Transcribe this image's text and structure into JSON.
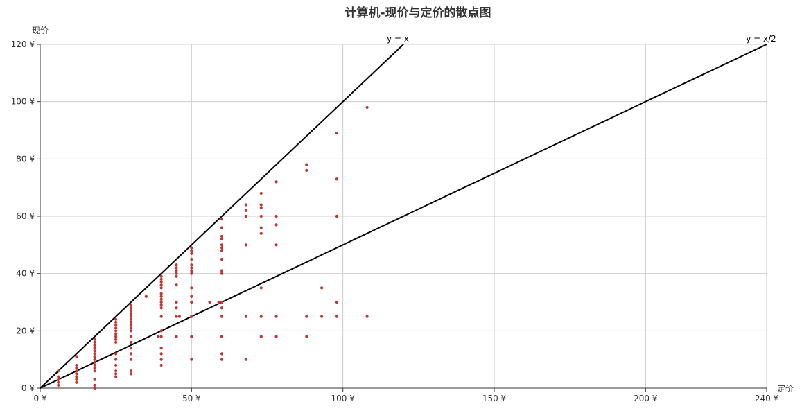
{
  "chart_data": {
    "type": "scatter",
    "title": "计算机-现价与定价的散点图",
    "xlabel": "定价",
    "ylabel": "现价",
    "xlim": [
      0,
      240
    ],
    "ylim": [
      0,
      120
    ],
    "x_ticks": [
      0,
      50,
      100,
      150,
      200,
      240
    ],
    "y_ticks": [
      0,
      20,
      40,
      60,
      80,
      100,
      120
    ],
    "x_tick_labels": [
      "0 ¥",
      "50 ¥",
      "100 ¥",
      "150 ¥",
      "200 ¥",
      "240 ¥"
    ],
    "y_tick_labels": [
      "0 ¥",
      "20 ¥",
      "40 ¥",
      "60 ¥",
      "80 ¥",
      "100 ¥",
      "120 ¥"
    ],
    "grid": true,
    "point_color": "#c23531",
    "reference_lines": [
      {
        "label": "y = x",
        "slope": 1,
        "x_end": 120
      },
      {
        "label": "y = x/2",
        "slope": 0.5,
        "x_end": 240
      }
    ],
    "points": [
      [
        6,
        1
      ],
      [
        6,
        2
      ],
      [
        6,
        3
      ],
      [
        6,
        4
      ],
      [
        6,
        6
      ],
      [
        12,
        2
      ],
      [
        12,
        3
      ],
      [
        12,
        4
      ],
      [
        12,
        5
      ],
      [
        12,
        6
      ],
      [
        12,
        7
      ],
      [
        12,
        8
      ],
      [
        12,
        11
      ],
      [
        18,
        0
      ],
      [
        18,
        1
      ],
      [
        18,
        3
      ],
      [
        18,
        6
      ],
      [
        18,
        7
      ],
      [
        18,
        8
      ],
      [
        18,
        9
      ],
      [
        18,
        10
      ],
      [
        18,
        11
      ],
      [
        18,
        12
      ],
      [
        18,
        13
      ],
      [
        18,
        14
      ],
      [
        18,
        15
      ],
      [
        18,
        16
      ],
      [
        18,
        17
      ],
      [
        25,
        4
      ],
      [
        25,
        5
      ],
      [
        25,
        6
      ],
      [
        25,
        8
      ],
      [
        25,
        10
      ],
      [
        25,
        12
      ],
      [
        25,
        16
      ],
      [
        25,
        17
      ],
      [
        25,
        18
      ],
      [
        25,
        19
      ],
      [
        25,
        20
      ],
      [
        25,
        21
      ],
      [
        25,
        22
      ],
      [
        25,
        23
      ],
      [
        25,
        24
      ],
      [
        30,
        5
      ],
      [
        30,
        6
      ],
      [
        30,
        10
      ],
      [
        30,
        12
      ],
      [
        30,
        14
      ],
      [
        30,
        16
      ],
      [
        30,
        18
      ],
      [
        30,
        20
      ],
      [
        30,
        21
      ],
      [
        30,
        22
      ],
      [
        30,
        23
      ],
      [
        30,
        24
      ],
      [
        30,
        25
      ],
      [
        30,
        26
      ],
      [
        30,
        27
      ],
      [
        30,
        28
      ],
      [
        30,
        29
      ],
      [
        35,
        32
      ],
      [
        39,
        18
      ],
      [
        40,
        8
      ],
      [
        40,
        10
      ],
      [
        40,
        12
      ],
      [
        40,
        14
      ],
      [
        40,
        18
      ],
      [
        40,
        20
      ],
      [
        40,
        25
      ],
      [
        40,
        28
      ],
      [
        40,
        29
      ],
      [
        40,
        30
      ],
      [
        40,
        31
      ],
      [
        40,
        32
      ],
      [
        40,
        33
      ],
      [
        40,
        35
      ],
      [
        40,
        36
      ],
      [
        40,
        37
      ],
      [
        40,
        38
      ],
      [
        40,
        39
      ],
      [
        45,
        18
      ],
      [
        45,
        25
      ],
      [
        46,
        25
      ],
      [
        45,
        28
      ],
      [
        45,
        30
      ],
      [
        45,
        36
      ],
      [
        45,
        39
      ],
      [
        45,
        40
      ],
      [
        45,
        41
      ],
      [
        45,
        42
      ],
      [
        45,
        43
      ],
      [
        50,
        10
      ],
      [
        50,
        18
      ],
      [
        50,
        25
      ],
      [
        50,
        30
      ],
      [
        50,
        32
      ],
      [
        50,
        35
      ],
      [
        50,
        40
      ],
      [
        50,
        41
      ],
      [
        50,
        42
      ],
      [
        50,
        43
      ],
      [
        50,
        45
      ],
      [
        50,
        47
      ],
      [
        50,
        48
      ],
      [
        50,
        49
      ],
      [
        56,
        30
      ],
      [
        59,
        30
      ],
      [
        60,
        10
      ],
      [
        60,
        12
      ],
      [
        60,
        18
      ],
      [
        60,
        25
      ],
      [
        60,
        28
      ],
      [
        60,
        30
      ],
      [
        60,
        40
      ],
      [
        60,
        41
      ],
      [
        60,
        45
      ],
      [
        60,
        48
      ],
      [
        60,
        49
      ],
      [
        60,
        50
      ],
      [
        60,
        52
      ],
      [
        60,
        53
      ],
      [
        60,
        56
      ],
      [
        60,
        59
      ],
      [
        68,
        10
      ],
      [
        68,
        25
      ],
      [
        68,
        50
      ],
      [
        68,
        60
      ],
      [
        68,
        62
      ],
      [
        68,
        64
      ],
      [
        73,
        18
      ],
      [
        73,
        25
      ],
      [
        73,
        35
      ],
      [
        73,
        54
      ],
      [
        73,
        56
      ],
      [
        73,
        60
      ],
      [
        73,
        63
      ],
      [
        73,
        64
      ],
      [
        73,
        68
      ],
      [
        78,
        18
      ],
      [
        78,
        25
      ],
      [
        78,
        50
      ],
      [
        78,
        57
      ],
      [
        78,
        60
      ],
      [
        78,
        72
      ],
      [
        88,
        18
      ],
      [
        88,
        25
      ],
      [
        88,
        76
      ],
      [
        88,
        78
      ],
      [
        93,
        25
      ],
      [
        93,
        35
      ],
      [
        98,
        25
      ],
      [
        98,
        30
      ],
      [
        98,
        60
      ],
      [
        98,
        73
      ],
      [
        98,
        89
      ],
      [
        108,
        25
      ],
      [
        108,
        98
      ]
    ]
  }
}
